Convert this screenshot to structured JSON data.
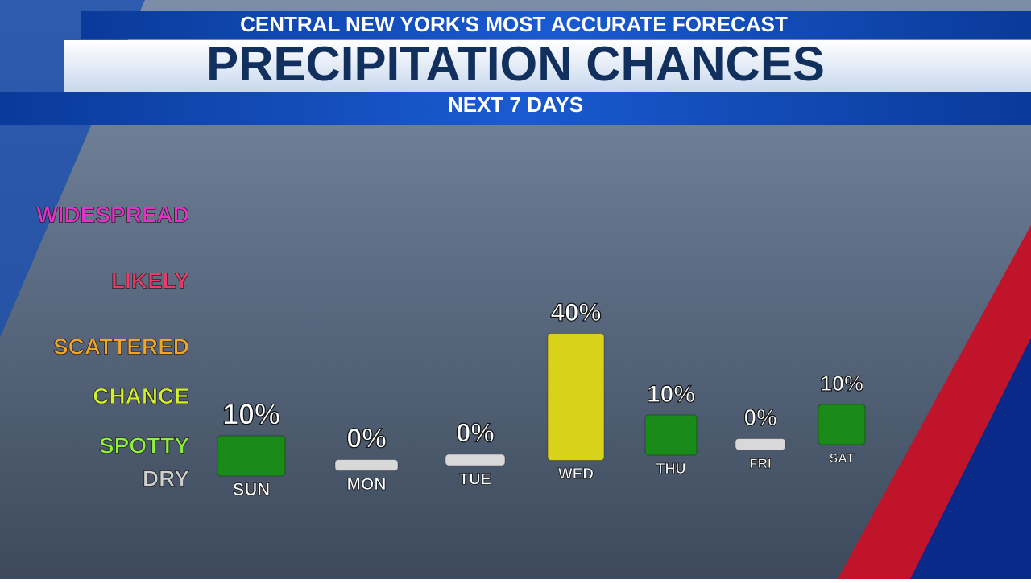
{
  "header": {
    "tagline": "CENTRAL NEW YORK'S MOST ACCURATE FORECAST"
  },
  "chart_data": {
    "type": "bar",
    "title": "PRECIPITATION CHANCES",
    "subtitle": "NEXT 7 DAYS",
    "categories": [
      "SUN",
      "MON",
      "TUE",
      "WED",
      "THU",
      "FRI",
      "SAT"
    ],
    "values": [
      10,
      0,
      0,
      40,
      10,
      0,
      10
    ],
    "value_labels": [
      "10%",
      "0%",
      "0%",
      "40%",
      "10%",
      "0%",
      "10%"
    ],
    "colors": [
      "#1a8a1a",
      "#d8d8d8",
      "#d8d8d8",
      "#d9d21a",
      "#1a8a1a",
      "#d8d8d8",
      "#1a8a1a"
    ],
    "ylim": [
      0,
      80
    ],
    "yticks": [
      {
        "value": 0,
        "label": "DRY"
      },
      {
        "value": 10,
        "label": "SPOTTY"
      },
      {
        "value": 25,
        "label": "CHANCE"
      },
      {
        "value": 40,
        "label": "SCATTERED"
      },
      {
        "value": 60,
        "label": "LIKELY"
      },
      {
        "value": 80,
        "label": "WIDESPREAD"
      }
    ],
    "ytick_colors": [
      "#d0d0d0",
      "#8cf23a",
      "#d4f02a",
      "#f0a42a",
      "#f03a6a",
      "#e830c8"
    ]
  }
}
